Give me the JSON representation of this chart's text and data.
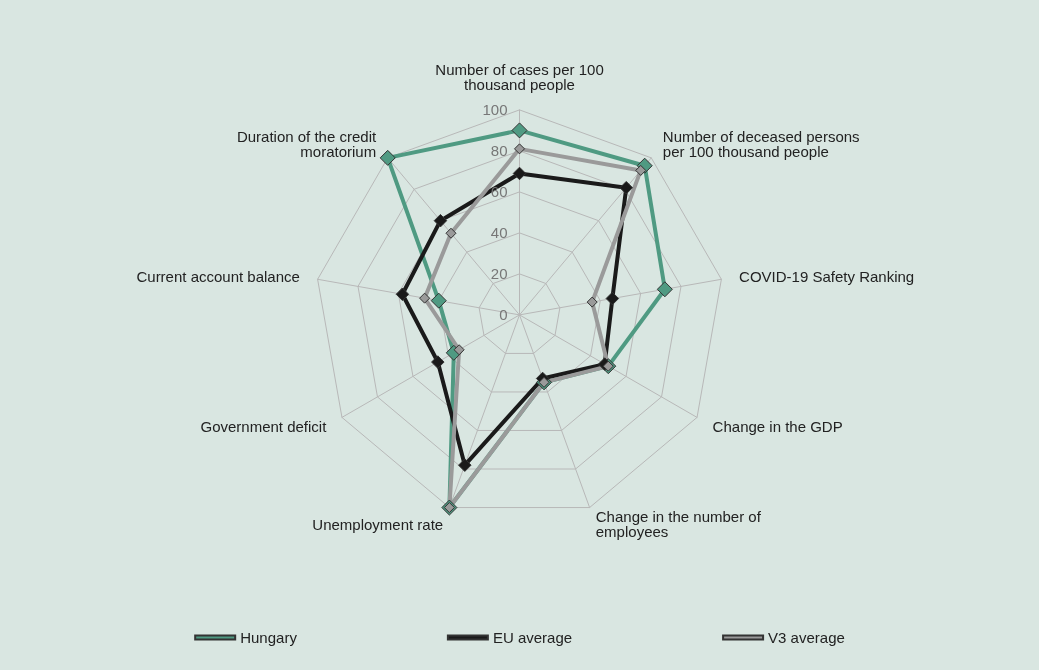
{
  "chart_data": {
    "type": "radar",
    "categories": [
      "Number of cases per 100 thousand people",
      "Number of deceased persons per 100 thousand people",
      "COVID-19 Safety Ranking",
      "Change in the GDP",
      "Change in the number of employees",
      "Unemployment rate",
      "Government deficit",
      "Current account balance",
      "Duration of the credit moratorium"
    ],
    "series": [
      {
        "name": "Hungary",
        "color": "#4f9a82",
        "values": [
          90,
          95,
          72,
          50,
          35,
          100,
          37,
          40,
          100
        ]
      },
      {
        "name": "EU average",
        "color": "#1a1a1a",
        "values": [
          69,
          81,
          46,
          48,
          33,
          78,
          46,
          58,
          60
        ]
      },
      {
        "name": "V3 average",
        "color": "#9a9a9a",
        "values": [
          81,
          92,
          36,
          50,
          35,
          100,
          34,
          47,
          52
        ]
      }
    ],
    "ylim": [
      0,
      100
    ],
    "yticks": [
      0,
      20,
      40,
      60,
      80,
      100
    ],
    "grid": true,
    "legend": "bottom",
    "marker": "diamond",
    "line_style": "solid"
  }
}
